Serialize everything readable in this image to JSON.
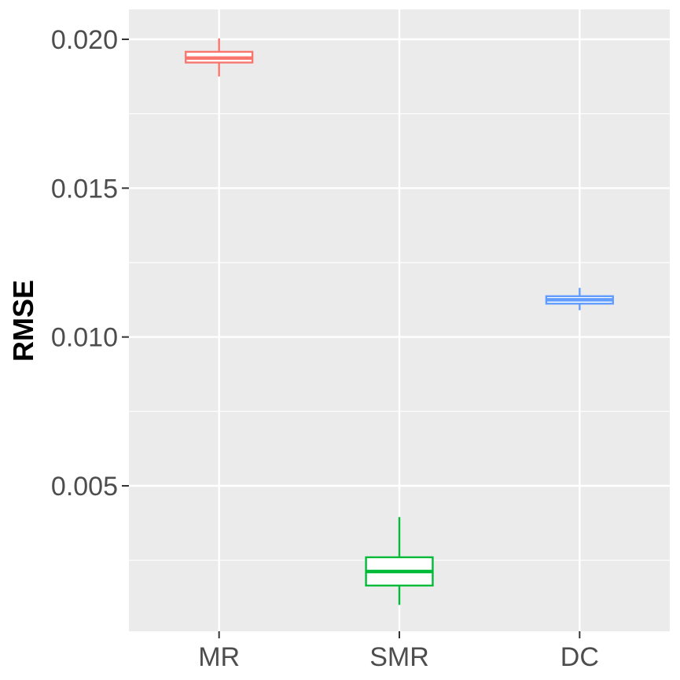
{
  "chart_data": {
    "type": "boxplot",
    "ylabel": "RMSE",
    "xlabel": "",
    "title": "",
    "categories": [
      "MR",
      "SMR",
      "DC"
    ],
    "ylim": [
      0.0,
      0.021
    ],
    "yticks": [
      0.005,
      0.01,
      0.015,
      0.02
    ],
    "ytick_labels": [
      "0.005",
      "0.010",
      "0.015",
      "0.020"
    ],
    "grid": true,
    "legend": "none",
    "boxes": [
      {
        "category": "MR",
        "color": "#F8766D",
        "min": 0.01875,
        "q1": 0.01922,
        "median": 0.01937,
        "q3": 0.01958,
        "max": 0.02003
      },
      {
        "category": "SMR",
        "color": "#00BA38",
        "min": 0.001,
        "q1": 0.00165,
        "median": 0.00212,
        "q3": 0.0026,
        "max": 0.00395
      },
      {
        "category": "DC",
        "color": "#619CFF",
        "min": 0.0109,
        "q1": 0.01112,
        "median": 0.01125,
        "q3": 0.01137,
        "max": 0.01165
      }
    ]
  }
}
